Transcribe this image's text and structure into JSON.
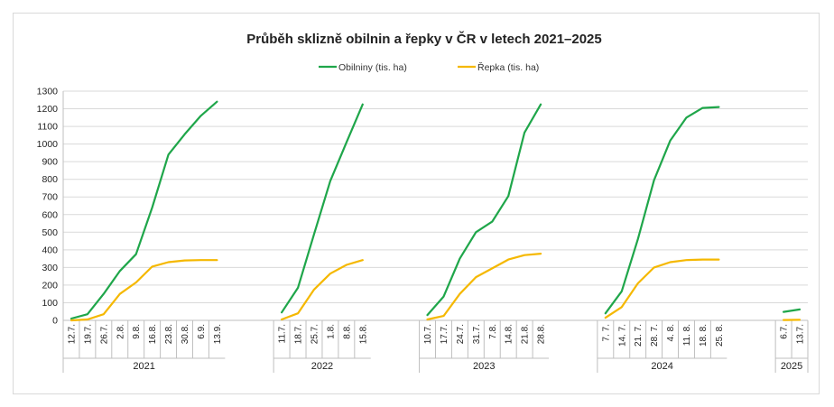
{
  "chart_data": {
    "type": "line",
    "title": "Průběh sklizně obilnin a řepky v ČR v letech 2021–2025",
    "ylim": [
      0,
      1300
    ],
    "ystep": 100,
    "grid": true,
    "legend_position": "top",
    "groups": [
      {
        "year": "2021",
        "x": [
          "12.7.",
          "19.7.",
          "26.7.",
          "2.8.",
          "9.8.",
          "16.8.",
          "23.8.",
          "30.8.",
          "6.9.",
          "13.9."
        ],
        "series": [
          {
            "name": "Obilniny (tis. ha)",
            "color": "#1fa64a",
            "values": [
              10,
              35,
              150,
              280,
              375,
              640,
              940,
              1055,
              1160,
              1240
            ]
          },
          {
            "name": "Řepka (tis. ha)",
            "color": "#f5b800",
            "values": [
              0,
              5,
              35,
              150,
              215,
              305,
              330,
              340,
              342,
              342
            ]
          }
        ]
      },
      {
        "year": "2022",
        "x": [
          "11.7.",
          "18.7.",
          "25.7.",
          "1.8.",
          "8.8.",
          "15.8."
        ],
        "series": [
          {
            "name": "Obilniny (tis. ha)",
            "color": "#1fa64a",
            "values": [
              45,
              185,
              490,
              790,
              1010,
              1225
            ]
          },
          {
            "name": "Řepka (tis. ha)",
            "color": "#f5b800",
            "values": [
              5,
              40,
              175,
              265,
              315,
              342
            ]
          }
        ]
      },
      {
        "year": "2023",
        "x": [
          "10.7.",
          "17.7.",
          "24.7.",
          "31.7.",
          "7.8.",
          "14.8.",
          "21.8.",
          "28.8."
        ],
        "series": [
          {
            "name": "Obilniny (tis. ha)",
            "color": "#1fa64a",
            "values": [
              30,
              135,
              350,
              500,
              560,
              705,
              1065,
              1225
            ]
          },
          {
            "name": "Řepka (tis. ha)",
            "color": "#f5b800",
            "values": [
              5,
              25,
              150,
              245,
              295,
              345,
              370,
              378
            ]
          }
        ]
      },
      {
        "year": "2024",
        "x": [
          "7. 7.",
          "14. 7.",
          "21. 7.",
          "28. 7.",
          "4. 8.",
          "11. 8.",
          "18. 8.",
          "25. 8."
        ],
        "series": [
          {
            "name": "Obilniny (tis. ha)",
            "color": "#1fa64a",
            "values": [
              40,
              165,
              460,
              795,
              1020,
              1150,
              1205,
              1210
            ]
          },
          {
            "name": "Řepka (tis. ha)",
            "color": "#f5b800",
            "values": [
              15,
              75,
              210,
              300,
              330,
              342,
              345,
              345
            ]
          }
        ]
      },
      {
        "year": "2025",
        "x": [
          "6.7.",
          "13.7."
        ],
        "series": [
          {
            "name": "Obilniny (tis. ha)",
            "color": "#1fa64a",
            "values": [
              48,
              62
            ]
          },
          {
            "name": "Řepka (tis. ha)",
            "color": "#f5b800",
            "values": [
              2,
              3
            ]
          }
        ]
      }
    ],
    "legend": [
      {
        "name": "Obilniny (tis. ha)",
        "color": "#1fa64a"
      },
      {
        "name": "Řepka (tis. ha)",
        "color": "#f5b800"
      }
    ]
  }
}
